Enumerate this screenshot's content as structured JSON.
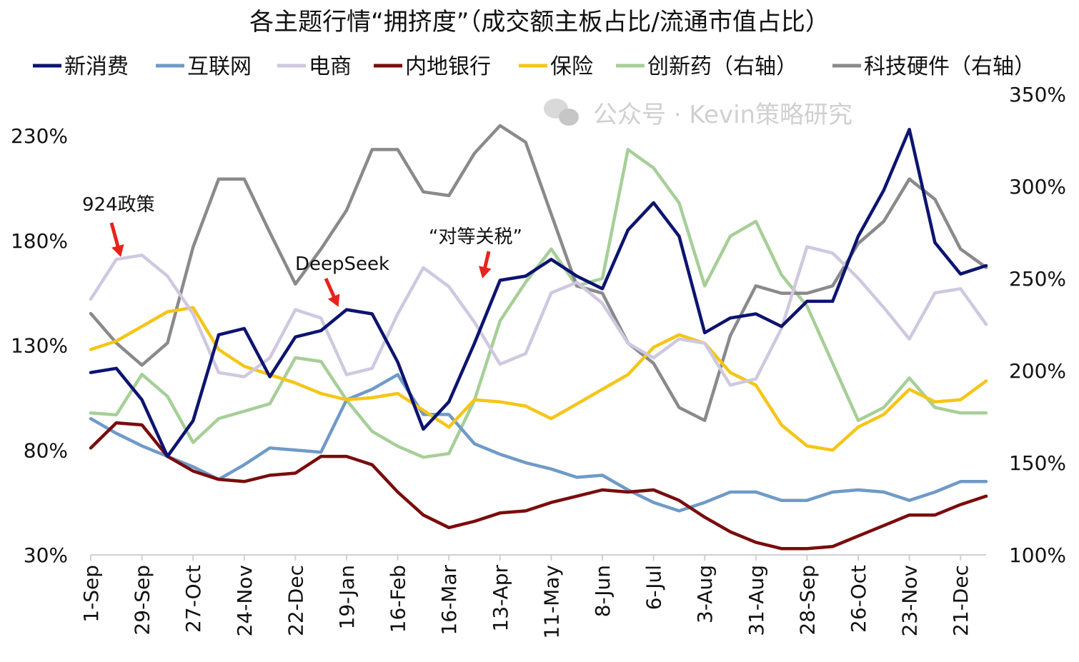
{
  "chart_data": {
    "type": "line",
    "title": "各主题行情“拥挤度”（成交额主板占比/流通市值占比）",
    "x_unit": "days since 1-Sep",
    "x": [
      0,
      14,
      28,
      42,
      56,
      70,
      84,
      98,
      112,
      126,
      140,
      154,
      168,
      182,
      196,
      210,
      224,
      238,
      252,
      266,
      280,
      294,
      308,
      322,
      336,
      350,
      364,
      378,
      392,
      406,
      420,
      434,
      448,
      462,
      476,
      490
    ],
    "x_tick_labels": [
      "1-Sep",
      "29-Sep",
      "27-Oct",
      "24-Nov",
      "22-Dec",
      "19-Jan",
      "16-Feb",
      "16-Mar",
      "13-Apr",
      "11-May",
      "8-Jun",
      "6-Jul",
      "3-Aug",
      "31-Aug",
      "28-Sep",
      "26-Oct",
      "23-Nov",
      "21-Dec"
    ],
    "x_tick_days": [
      0,
      28,
      56,
      84,
      112,
      140,
      168,
      196,
      224,
      252,
      280,
      308,
      336,
      364,
      392,
      420,
      448,
      476
    ],
    "y_left": {
      "ylim": [
        30,
        230
      ],
      "ticks": [
        30,
        80,
        130,
        180,
        230
      ],
      "tick_labels": [
        "30%",
        "80%",
        "130%",
        "180%",
        "230%"
      ]
    },
    "y_right": {
      "ylim": [
        100,
        350
      ],
      "ticks": [
        100,
        150,
        200,
        250,
        300,
        350
      ],
      "tick_labels": [
        "100%",
        "150%",
        "200%",
        "250%",
        "300%",
        "350%"
      ]
    },
    "legend_position": "top",
    "series": [
      {
        "name": "新消费",
        "axis": "left",
        "color": "#0c1470",
        "values": [
          117,
          119,
          104,
          77,
          94,
          135,
          138,
          115,
          134,
          137,
          147,
          145,
          122,
          90,
          103,
          131,
          161,
          163,
          171,
          163,
          157,
          185,
          198,
          182,
          136,
          143,
          145,
          139,
          151,
          151,
          182,
          204,
          233,
          179,
          164,
          168
        ]
      },
      {
        "name": "互联网",
        "axis": "left",
        "color": "#6f9ac8",
        "values": [
          95,
          88,
          82,
          77,
          72,
          66,
          73,
          81,
          80,
          79,
          104,
          109,
          116,
          97,
          97,
          83,
          78,
          74,
          71,
          67,
          68,
          61,
          55,
          51,
          55,
          60,
          60,
          56,
          56,
          60,
          61,
          60,
          56,
          60,
          65,
          65
        ]
      },
      {
        "name": "电商",
        "axis": "left",
        "color": "#cfc8e0",
        "values": [
          152,
          171,
          173,
          163,
          145,
          117,
          115,
          124,
          147,
          143,
          116,
          119,
          145,
          167,
          158,
          141,
          121,
          126,
          155,
          160,
          150,
          131,
          124,
          133,
          131,
          111,
          114,
          138,
          177,
          174,
          162,
          148,
          133,
          155,
          157,
          140
        ]
      },
      {
        "name": "内地银行",
        "axis": "left",
        "color": "#7a0c0c",
        "values": [
          81,
          93,
          92,
          77,
          70,
          66,
          65,
          68,
          69,
          77,
          77,
          73,
          60,
          49,
          43,
          46,
          50,
          51,
          55,
          58,
          61,
          60,
          61,
          56,
          48,
          41,
          36,
          33,
          33,
          34,
          39,
          44,
          49,
          49,
          54,
          58
        ]
      },
      {
        "name": "保险",
        "axis": "left",
        "color": "#f5c518",
        "values": [
          128,
          132,
          139,
          146,
          148,
          128,
          120,
          116,
          112,
          107,
          104,
          105,
          107,
          99,
          91,
          104,
          103,
          101,
          95,
          102,
          109,
          116,
          129,
          135,
          131,
          117,
          111,
          92,
          82,
          80,
          91,
          97,
          109,
          103,
          104,
          113
        ]
      },
      {
        "name": "创新药（右轴）",
        "axis": "right",
        "color": "#a6cf98",
        "values": [
          177,
          176,
          198,
          186,
          161,
          174,
          178,
          182,
          207,
          205,
          184,
          167,
          159,
          153,
          155,
          184,
          227,
          248,
          266,
          246,
          250,
          320,
          310,
          291,
          246,
          273,
          281,
          252,
          235,
          204,
          173,
          180,
          196,
          180,
          177,
          177
        ]
      },
      {
        "name": "科技硬件（右轴）",
        "axis": "right",
        "color": "#8a8a8a",
        "values": [
          231,
          215,
          203,
          215,
          267,
          304,
          304,
          275,
          247,
          266,
          287,
          320,
          320,
          297,
          295,
          318,
          333,
          324,
          285,
          246,
          242,
          215,
          204,
          180,
          173,
          219,
          246,
          242,
          242,
          246,
          269,
          281,
          304,
          293,
          266,
          256
        ]
      }
    ],
    "annotations": [
      {
        "text": "924政策",
        "arrow_color": "#e8231c"
      },
      {
        "text": "DeepSeek",
        "arrow_color": "#e8231c"
      },
      {
        "text": "“对等关税”",
        "arrow_color": "#e8231c"
      }
    ]
  },
  "watermark": "公众号 · Kevin策略研究"
}
